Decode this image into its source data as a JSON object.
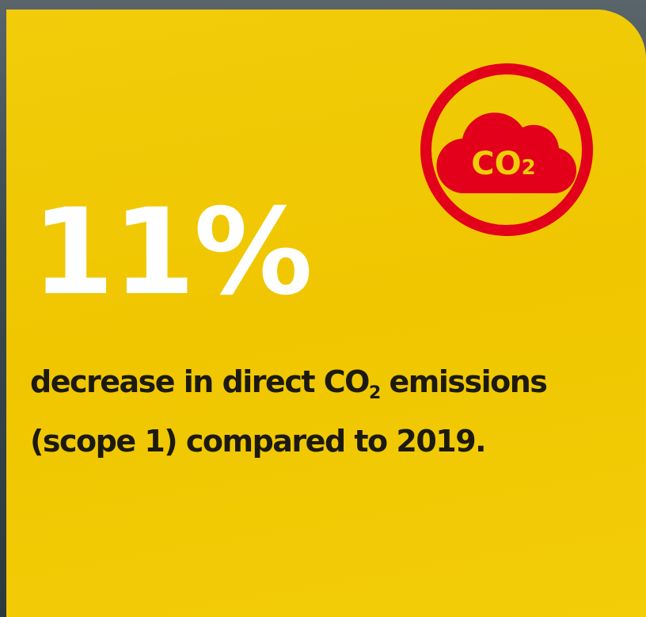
{
  "headline": "11%",
  "description": {
    "line1": [
      "decrease in direct CO",
      "2",
      " emissions"
    ],
    "line2": "(scope 1) compared to 2019."
  },
  "icon": {
    "label": "CO",
    "subscript": "2"
  }
}
